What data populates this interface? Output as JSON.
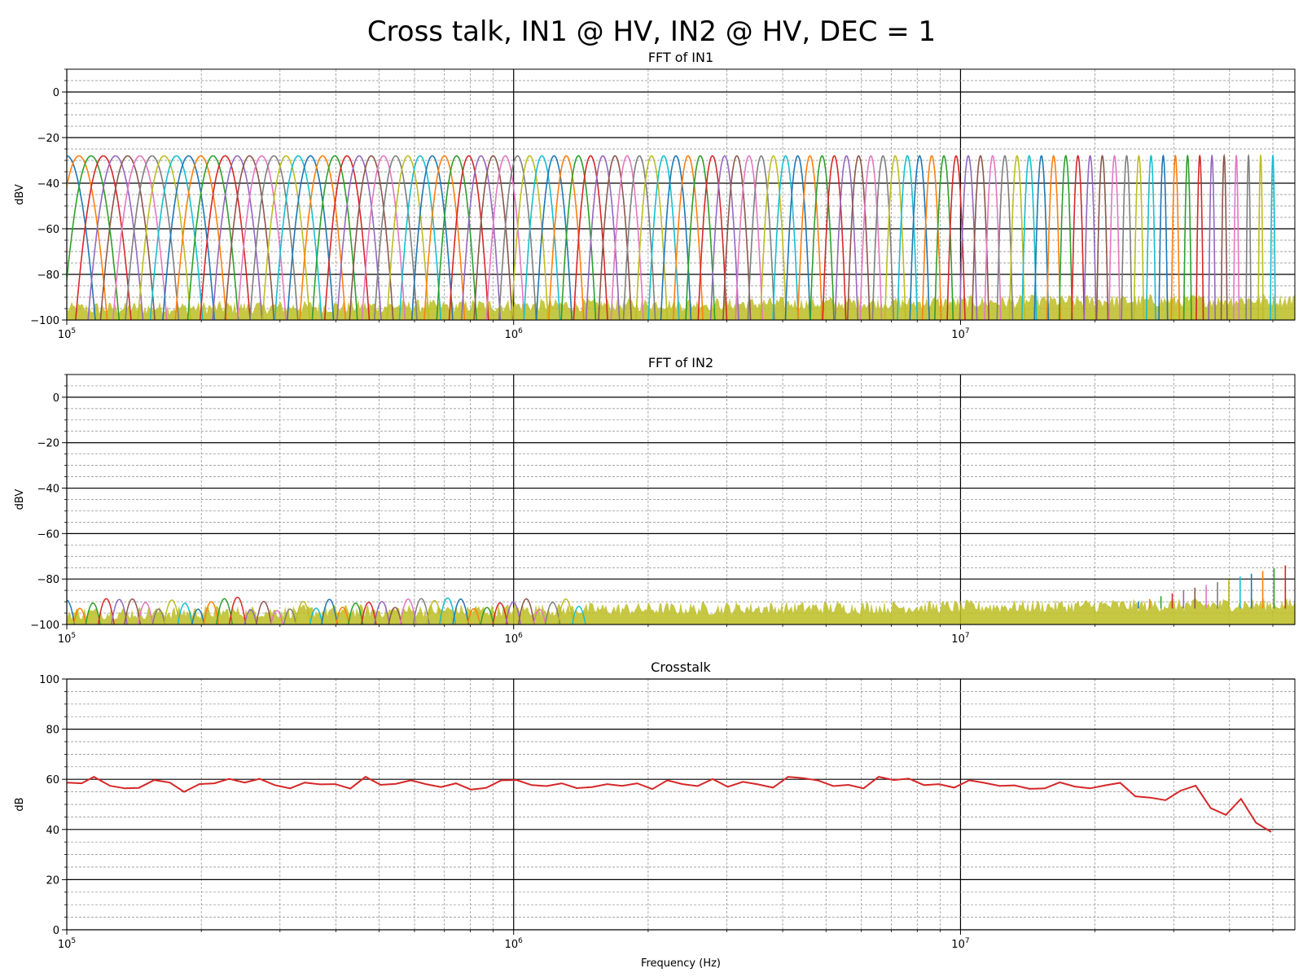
{
  "figure_title": "Cross talk, IN1 @ HV, IN2 @ HV, DEC = 1",
  "colors": {
    "tab10": [
      "#1f77b4",
      "#ff7f0e",
      "#2ca02c",
      "#d62728",
      "#9467bd",
      "#8c564b",
      "#e377c2",
      "#7f7f7f",
      "#bcbd22",
      "#17becf"
    ],
    "crosstalk_line": "#d62728",
    "noise_fill": "#bcbd22",
    "major_grid": "#000000",
    "minor_grid": "#888888"
  },
  "chart_data": [
    {
      "type": "line",
      "title": "FFT of IN1",
      "xlabel": "",
      "ylabel": "dBV",
      "xscale": "log",
      "xlim": [
        100000,
        56000000
      ],
      "ylim": [
        -100,
        10
      ],
      "x_ticks": [
        "10^5",
        "10^6",
        "10^7"
      ],
      "y_ticks": [
        -100,
        -80,
        -60,
        -40,
        -20,
        0
      ],
      "grid": "major solid black, minor dashed gray",
      "tones": {
        "count": 100,
        "f_start_hz": 100000,
        "f_stop_hz": 50000000,
        "spacing": "log",
        "peak_dbv": -28,
        "noise_floor_dbv": [
          -100,
          -88
        ]
      }
    },
    {
      "type": "line",
      "title": "FFT of IN2",
      "xlabel": "",
      "ylabel": "dBV",
      "xscale": "log",
      "xlim": [
        100000,
        56000000
      ],
      "ylim": [
        -100,
        10
      ],
      "x_ticks": [
        "10^5",
        "10^6",
        "10^7"
      ],
      "y_ticks": [
        -100,
        -80,
        -60,
        -40,
        -20,
        0
      ],
      "grid": "major solid black, minor dashed gray",
      "leakage_peaks_dbv": {
        "low_freq": -85,
        "high_freq_max": -74
      },
      "noise_floor_dbv": [
        -100,
        -87
      ]
    },
    {
      "type": "line",
      "title": "Crosstalk",
      "xlabel": "Frequency (Hz)",
      "ylabel": "dB",
      "xscale": "log",
      "xlim": [
        100000,
        56000000
      ],
      "ylim": [
        0,
        100
      ],
      "x_ticks": [
        "10^5",
        "10^6",
        "10^7"
      ],
      "y_ticks": [
        0,
        20,
        40,
        60,
        80,
        100
      ],
      "grid": "major solid black, minor dashed gray",
      "series": [
        {
          "x_hz": [
            100000,
            108000,
            115000,
            125000,
            135000,
            145000,
            157000,
            170000,
            183000,
            198000,
            214000,
            231000,
            250000,
            270000,
            292000,
            316000,
            341000,
            369000,
            399000,
            431000,
            466000,
            504000,
            545000,
            589000,
            636000,
            688000,
            743000,
            803000,
            868000,
            939000,
            1015000,
            1097000,
            1185000,
            1281000,
            1385000,
            1497000,
            1618000,
            1749000,
            1890000,
            2043000,
            2208000,
            2387000,
            2580000,
            2788000,
            3014000,
            3258000,
            3521000,
            3806000,
            4114000,
            4447000,
            4806000,
            5195000,
            5615000,
            6069000,
            6560000,
            7090000,
            7664000,
            8284000,
            8954000,
            9678000,
            10461000,
            11307000,
            12221000,
            13210000,
            14278000,
            15433000,
            16681000,
            18030000,
            19488000,
            21065000,
            22768000,
            24610000,
            26600000,
            28751000,
            31077000,
            33590000,
            36307000,
            39243000,
            42417000,
            45848000,
            49556000
          ],
          "y_db": [
            58.7,
            58.4,
            61,
            57.4,
            56.4,
            56.6,
            59.7,
            58.7,
            55,
            58.1,
            58.4,
            60.2,
            58.7,
            60.2,
            57.7,
            56.4,
            58.7,
            58,
            58.1,
            56.3,
            61,
            57.8,
            58.2,
            59.6,
            58.1,
            56.9,
            58.4,
            55.9,
            56.6,
            59.6,
            59.7,
            57.7,
            57.3,
            58.4,
            56.5,
            56.9,
            58.1,
            57.4,
            58.4,
            56.1,
            59.6,
            58.1,
            57.3,
            60.1,
            57,
            59,
            58,
            56.7,
            61,
            60.5,
            59.5,
            57.3,
            57.8,
            56.4,
            61,
            59.7,
            60.3,
            57.7,
            58.1,
            56.7,
            59.6,
            58.6,
            57.4,
            57.6,
            56.2,
            56.4,
            58.8,
            57.1,
            56.4,
            57.6,
            58.6,
            53.2,
            52.7,
            51.7,
            55.5,
            57.5,
            48.5,
            45.8,
            52.2,
            42.7,
            39
          ]
        }
      ]
    }
  ]
}
